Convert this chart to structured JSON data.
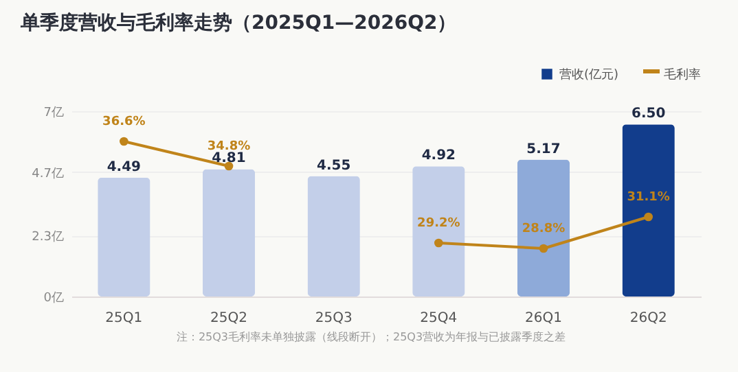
{
  "chart_data": {
    "type": "bar",
    "title": "单季度营收与毛利率走势（2025Q1—2026Q2）",
    "categories": [
      "25Q1",
      "25Q2",
      "25Q3",
      "25Q4",
      "26Q1",
      "26Q2"
    ],
    "series": [
      {
        "name": "营收(亿元)",
        "color": "#123d8c",
        "colors": [
          "#c3cfe9",
          "#c3cfe9",
          "#c3cfe9",
          "#c3cfe9",
          "#8eaad9",
          "#123d8c"
        ],
        "values": [
          4.49,
          4.81,
          4.55,
          4.92,
          5.17,
          6.5
        ],
        "value_labels": [
          "4.49",
          "4.81",
          "4.55",
          "4.92",
          "5.17",
          "6.50"
        ]
      },
      {
        "name": "毛利率",
        "type": "line",
        "axis": "y2",
        "color": "#c0841a",
        "values": [
          36.6,
          34.8,
          null,
          29.2,
          28.8,
          31.1
        ],
        "value_labels": [
          "36.6%",
          "34.8%",
          null,
          "29.2%",
          "28.8%",
          "31.1%"
        ]
      }
    ],
    "ylim": [
      0,
      7
    ],
    "yticks": [
      {
        "value": 0,
        "label": "0亿"
      },
      {
        "value": 2.3,
        "label": "2.3亿"
      },
      {
        "value": 4.7,
        "label": "4.7亿"
      },
      {
        "value": 7,
        "label": "7亿"
      }
    ],
    "y2lim": [
      25.3,
      38.8
    ],
    "grid": "y",
    "legend": "top right",
    "marker": "circle",
    "annotations": [
      "注：25Q3毛利率未单独披露（线段断开）；25Q3营收为年报与已披露季度之差"
    ]
  }
}
